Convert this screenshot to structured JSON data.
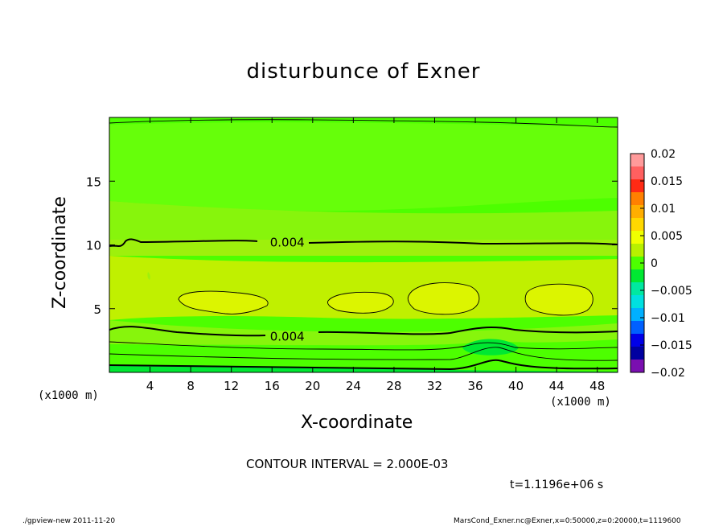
{
  "chart_data": {
    "type": "heatmap",
    "title": "disturbunce of Exner",
    "xlabel": "X-coordinate",
    "ylabel": "Z-coordinate",
    "x_unit_left": "(x1000 m)",
    "x_unit_right": "(x1000 m)",
    "xlim": [
      0,
      50
    ],
    "ylim": [
      0,
      20
    ],
    "x_ticks": [
      "4",
      "8",
      "12",
      "16",
      "20",
      "24",
      "28",
      "32",
      "36",
      "40",
      "44",
      "48"
    ],
    "y_ticks": [
      "5",
      "10",
      "15"
    ],
    "colorbar": {
      "ticks": [
        "0.02",
        "0.015",
        "0.01",
        "0.005",
        "0",
        "−0.005",
        "−0.01",
        "−0.015",
        "−0.02"
      ],
      "range": [
        -0.02,
        0.02
      ],
      "colors": [
        "#ff9a9a",
        "#ff6060",
        "#ff2a14",
        "#ff8000",
        "#ffae00",
        "#ffd800",
        "#f0ff00",
        "#b8f000",
        "#4dff00",
        "#00e832",
        "#00e8a0",
        "#00e0e0",
        "#00b0ff",
        "#0060ff",
        "#0000e8",
        "#0000a0",
        "#7a0fb0"
      ]
    },
    "contour_labels": [
      {
        "value": "0.004",
        "x": 17.5,
        "z": 10.2
      },
      {
        "value": "0.004",
        "x": 17.5,
        "z": 2.8
      }
    ],
    "field_bands": [
      {
        "z_range": [
          15.5,
          20
        ],
        "value": 0.001
      },
      {
        "z_range": [
          13,
          15.5
        ],
        "value": 0.002
      },
      {
        "z_range": [
          11,
          13
        ],
        "value": 0.003
      },
      {
        "z_range": [
          9.5,
          11
        ],
        "value": 0.004
      },
      {
        "z_range": [
          3,
          9.5
        ],
        "value": 0.0055
      },
      {
        "z_range": [
          1.5,
          3
        ],
        "value": 0.003
      },
      {
        "z_range": [
          0,
          1.5
        ],
        "value": 0.001
      }
    ],
    "maxima_regions": [
      {
        "x_center": 11.5,
        "z_center": 5.5,
        "value": 0.006
      },
      {
        "x_center": 24.5,
        "z_center": 5.4,
        "value": 0.006
      },
      {
        "x_center": 32.5,
        "z_center": 5.9,
        "value": 0.006
      },
      {
        "x_center": 44.5,
        "z_center": 5.8,
        "value": 0.006
      }
    ]
  },
  "contour_interval": "CONTOUR INTERVAL = 2.000E-03",
  "time_label": "t=1.1196e+06 s",
  "footer_left": "./gpview-new   2011-11-20",
  "footer_right": "MarsCond_Exner.nc@Exner,x=0:50000,z=0:20000,t=1119600"
}
